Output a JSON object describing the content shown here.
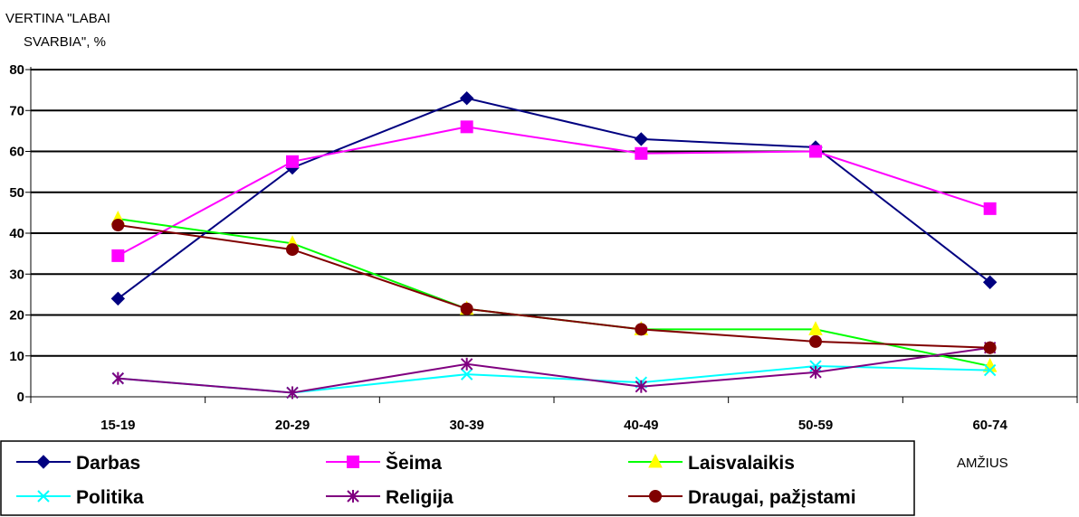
{
  "chart_data": {
    "type": "line",
    "ylabel_lines": [
      "VERTINA \"LABAI",
      "SVARBIA\", %"
    ],
    "xlabel": "AMŽIUS",
    "categories": [
      "15-19",
      "20-29",
      "30-39",
      "40-49",
      "50-59",
      "60-74"
    ],
    "yticks": [
      "80",
      "70",
      "60",
      "50",
      "40",
      "30",
      "20",
      "10",
      "0"
    ],
    "ylim": [
      0,
      80
    ],
    "grid": true,
    "legend_position": "bottom",
    "series": [
      {
        "name": "Darbas",
        "color": "#000080",
        "marker": "diamond",
        "values": [
          24,
          56,
          73,
          63,
          61,
          28
        ]
      },
      {
        "name": "Šeima",
        "color": "#ff00ff",
        "marker": "square",
        "values": [
          34.5,
          57.5,
          66,
          59.5,
          60,
          46
        ]
      },
      {
        "name": "Laisvalaikis",
        "color": "#00ff00",
        "marker": "triangle",
        "values": [
          43.5,
          37.5,
          21.5,
          16.5,
          16.5,
          7.5
        ]
      },
      {
        "name": "Politika",
        "color": "#00ffff",
        "marker": "x",
        "values": [
          4.5,
          1,
          5.5,
          3.5,
          7.5,
          6.5
        ]
      },
      {
        "name": "Religija",
        "color": "#800080",
        "marker": "star",
        "values": [
          4.5,
          1,
          8,
          2.5,
          6,
          12
        ]
      },
      {
        "name": "Draugai, pažįstami",
        "color": "#800000",
        "marker": "circle",
        "values": [
          42,
          36,
          21.5,
          16.5,
          13.5,
          12
        ]
      }
    ]
  }
}
